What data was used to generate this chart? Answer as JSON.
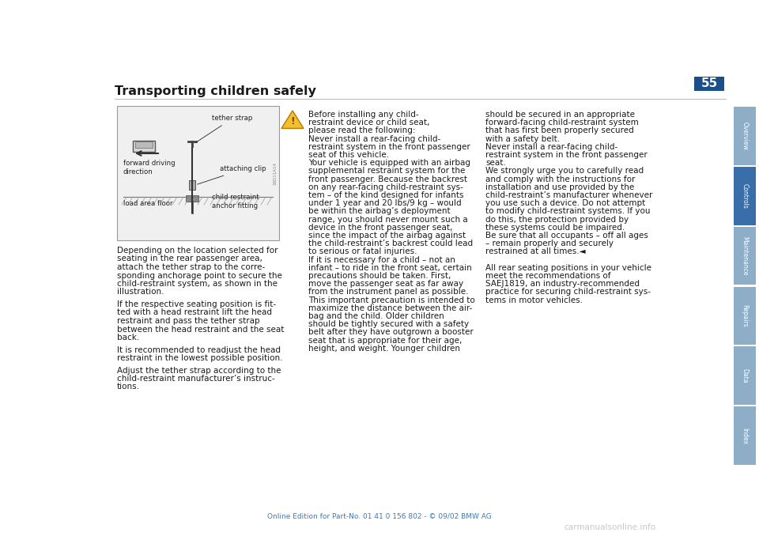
{
  "bg_color": "#ffffff",
  "page_number": "55",
  "title": "Transporting children safely",
  "title_fontsize": 11.5,
  "page_num_fontsize": 11,
  "footer_text": "Online Edition for Part-No. 01 41 0 156 802 - © 09/02 BMW AG",
  "footer_color": "#3a7bbf",
  "sidebar_labels": [
    "Overview",
    "Controls",
    "Maintenance",
    "Repairs",
    "Data",
    "Index"
  ],
  "sidebar_color": "#8eaec8",
  "sidebar_active": "Controls",
  "sidebar_active_color": "#3a6ea8",
  "page_num_box_color": "#1a4f8a",
  "left_col_paragraphs": [
    "Depending on the location selected for seating in the rear passenger area, attach the tether strap to the corre-sponding anchorage point to secure the child-restraint system, as shown in the illustration.",
    "If the respective seating position is fit-ted with a head restraint lift the head restraint and pass the tether strap between the head restraint and the seat back.",
    "It is recommended to readjust the head restraint in the lowest possible position.",
    "Adjust the tether strap according to the child-restraint manufacturer’s instruc-tions."
  ],
  "left_col_lines": [
    [
      "Depending on the location selected for",
      "seating in the rear passenger area,",
      "attach the tether strap to the corre-",
      "sponding anchorage point to secure the",
      "child-restraint system, as shown in the",
      "illustration."
    ],
    [
      "If the respective seating position is fit-",
      "ted with a head restraint lift the head",
      "restraint and pass the tether strap",
      "between the head restraint and the seat",
      "back."
    ],
    [
      "It is recommended to readjust the head",
      "restraint in the lowest possible position."
    ],
    [
      "Adjust the tether strap according to the",
      "child-restraint manufacturer’s instruc-",
      "tions."
    ]
  ],
  "middle_col_lines": [
    "Before installing any child-",
    "restraint device or child seat,",
    "please read the following:",
    "Never install a rear-facing child-",
    "restraint system in the front passenger",
    "seat of this vehicle.",
    "Your vehicle is equipped with an airbag",
    "supplemental restraint system for the",
    "front passenger. Because the backrest",
    "on any rear-facing child-restraint sys-",
    "tem – of the kind designed for infants",
    "under 1 year and 20 lbs/9 kg – would",
    "be within the airbag’s deployment",
    "range, you should never mount such a",
    "device in the front passenger seat,",
    "since the impact of the airbag against",
    "the child-restraint’s backrest could lead",
    "to serious or fatal injuries.",
    "If it is necessary for a child – not an",
    "infant – to ride in the front seat, certain",
    "precautions should be taken. First,",
    "move the passenger seat as far away",
    "from the instrument panel as possible.",
    "This important precaution is intended to",
    "maximize the distance between the air-",
    "bag and the child. Older children",
    "should be tightly secured with a safety",
    "belt after they have outgrown a booster",
    "seat that is appropriate for their age,",
    "height, and weight. Younger children"
  ],
  "right_col_lines": [
    "should be secured in an appropriate",
    "forward-facing child-restraint system",
    "that has first been properly secured",
    "with a safety belt.",
    "Never install a rear-facing child-",
    "restraint system in the front passenger",
    "seat.",
    "We strongly urge you to carefully read",
    "and comply with the instructions for",
    "installation and use provided by the",
    "child-restraint’s manufacturer whenever",
    "you use such a device. Do not attempt",
    "to modify child-restraint systems. If you",
    "do this, the protection provided by",
    "these systems could be impaired.",
    "Be sure that all occupants – off all ages",
    "– remain properly and securely",
    "restrained at all times.◄",
    "",
    "All rear seating positions in your vehicle",
    "meet the recommendations of",
    "SAEJ1819, an industry-recommended",
    "practice for securing child-restraint sys-",
    "tems in motor vehicles."
  ],
  "text_color": "#1a1a1a",
  "body_fontsize": 7.5,
  "warn_fontsize": 7.5,
  "label_fontsize": 6.2,
  "watermark": "carmanualsonline.info",
  "watermark_color": "#c8c8c8"
}
